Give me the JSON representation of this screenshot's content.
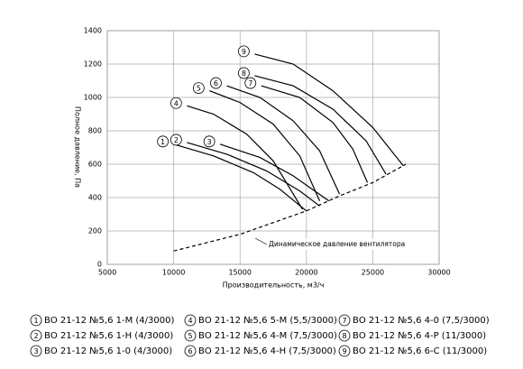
{
  "chart_data": {
    "type": "line",
    "xlabel": "Производительность, м3/ч",
    "ylabel": "Полное давление, Па",
    "xlim": [
      5000,
      30000
    ],
    "xticks": [
      5000,
      10000,
      15000,
      20000,
      25000,
      30000
    ],
    "ylim": [
      0,
      1400
    ],
    "yticks": [
      0,
      200,
      400,
      600,
      800,
      1000,
      1200,
      1400
    ],
    "grid": true,
    "series": [
      {
        "label": "1",
        "name": "ВО 21-12 №5,6 1-М (4/3000)",
        "color": "#000000",
        "x": [
          10000,
          13000,
          16000,
          18000,
          20000
        ],
        "values": [
          720,
          650,
          550,
          450,
          320
        ]
      },
      {
        "label": "2",
        "name": "ВО 21-12 №5,6 1-Н (4/3000)",
        "color": "#000000",
        "x": [
          11000,
          14000,
          17000,
          19500,
          21000
        ],
        "values": [
          730,
          660,
          560,
          440,
          350
        ]
      },
      {
        "label": "3",
        "name": "ВО 21-12 №5,6 1-0 (4/3000)",
        "color": "#000000",
        "x": [
          13500,
          16500,
          19000,
          21700
        ],
        "values": [
          720,
          640,
          530,
          380
        ]
      },
      {
        "label": "4",
        "name": "ВО 21-12 №5,6 5-М (5,5/3000)",
        "color": "#000000",
        "x": [
          11000,
          13000,
          15500,
          17500,
          19700
        ],
        "values": [
          950,
          900,
          780,
          620,
          330
        ]
      },
      {
        "label": "5",
        "name": "ВО 21-12 №5,6 4-М (7,5/3000)",
        "color": "#000000",
        "x": [
          12700,
          15000,
          17500,
          19500,
          21000
        ],
        "values": [
          1040,
          970,
          840,
          650,
          380
        ]
      },
      {
        "label": "6",
        "name": "ВО 21-12 №5,6 4-Н (7,5/3000)",
        "color": "#000000",
        "x": [
          14000,
          16500,
          19000,
          21000,
          22500
        ],
        "values": [
          1070,
          1000,
          860,
          680,
          420
        ]
      },
      {
        "label": "7",
        "name": "ВО 21-12 №5,6 4-0 (7,5/3000)",
        "color": "#000000",
        "x": [
          16600,
          19500,
          22000,
          23500,
          24600
        ],
        "values": [
          1070,
          1000,
          850,
          690,
          490
        ]
      },
      {
        "label": "8",
        "name": "ВО 21-12 №5,6 4-Р (11/3000)",
        "color": "#000000",
        "x": [
          16100,
          19000,
          22000,
          24500,
          26000
        ],
        "values": [
          1130,
          1070,
          930,
          740,
          540
        ]
      },
      {
        "label": "9",
        "name": "ВО 21-12 №5,6 6-С (11/3000)",
        "color": "#000000",
        "x": [
          16100,
          19000,
          22000,
          25000,
          27300
        ],
        "values": [
          1260,
          1200,
          1040,
          820,
          590
        ]
      }
    ],
    "dynamic_pressure": {
      "label": "Динамическое давление вентилятора",
      "x": [
        10000,
        15000,
        20000,
        22500,
        25000,
        27500
      ],
      "values": [
        80,
        180,
        320,
        410,
        490,
        600
      ]
    }
  }
}
